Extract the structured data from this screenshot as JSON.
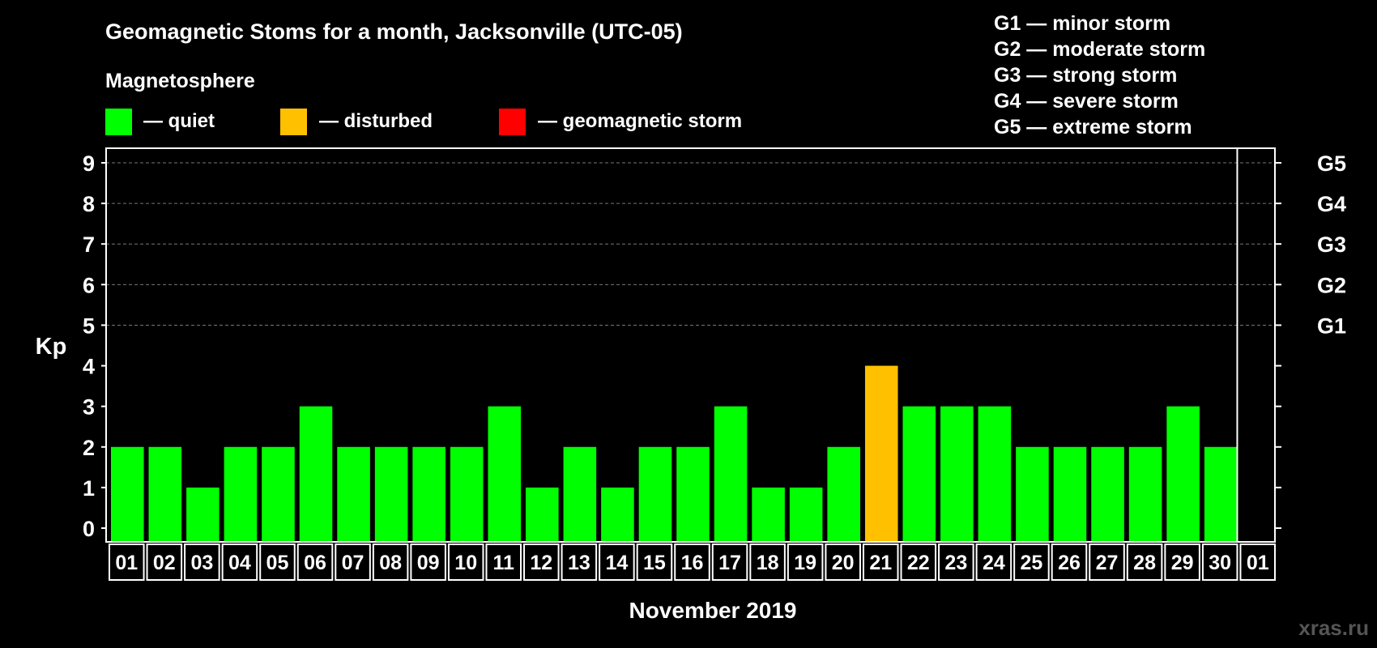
{
  "title": "Geomagnetic Stoms for a month, Jacksonville (UTC-05)",
  "legend": {
    "heading": "Magnetosphere",
    "items": [
      {
        "label": "— quiet",
        "color": "#00ff00"
      },
      {
        "label": "— disturbed",
        "color": "#ffc000"
      },
      {
        "label": "— geomagnetic storm",
        "color": "#ff0000"
      }
    ]
  },
  "storm_scale": [
    "G1 — minor storm",
    "G2 — moderate storm",
    "G3 — strong storm",
    "G4 — severe storm",
    "G5 — extreme storm"
  ],
  "watermark": "xras.ru",
  "chart_data": {
    "type": "bar",
    "categories": [
      "01",
      "02",
      "03",
      "04",
      "05",
      "06",
      "07",
      "08",
      "09",
      "10",
      "11",
      "12",
      "13",
      "14",
      "15",
      "16",
      "17",
      "18",
      "19",
      "20",
      "21",
      "22",
      "23",
      "24",
      "25",
      "26",
      "27",
      "28",
      "29",
      "30",
      "01"
    ],
    "values": [
      2,
      2,
      1,
      2,
      2,
      3,
      2,
      2,
      2,
      2,
      3,
      1,
      2,
      1,
      2,
      2,
      3,
      1,
      1,
      2,
      4,
      3,
      3,
      3,
      2,
      2,
      2,
      2,
      3,
      2,
      null
    ],
    "status": [
      "quiet",
      "quiet",
      "quiet",
      "quiet",
      "quiet",
      "quiet",
      "quiet",
      "quiet",
      "quiet",
      "quiet",
      "quiet",
      "quiet",
      "quiet",
      "quiet",
      "quiet",
      "quiet",
      "quiet",
      "quiet",
      "quiet",
      "quiet",
      "disturbed",
      "quiet",
      "quiet",
      "quiet",
      "quiet",
      "quiet",
      "quiet",
      "quiet",
      "quiet",
      "quiet",
      null
    ],
    "status_colors": {
      "quiet": "#00ff00",
      "disturbed": "#ffc000",
      "storm": "#ff0000"
    },
    "ylabel": "Kp",
    "xlabel": "November 2019",
    "ylim": [
      0,
      9
    ],
    "yticks": [
      0,
      1,
      2,
      3,
      4,
      5,
      6,
      7,
      8,
      9
    ],
    "right_ticks": [
      {
        "kp": 5,
        "label": "G1"
      },
      {
        "kp": 6,
        "label": "G2"
      },
      {
        "kp": 7,
        "label": "G3"
      },
      {
        "kp": 8,
        "label": "G4"
      },
      {
        "kp": 9,
        "label": "G5"
      }
    ],
    "grid": "dashed horizontal at Kp 5–9"
  }
}
